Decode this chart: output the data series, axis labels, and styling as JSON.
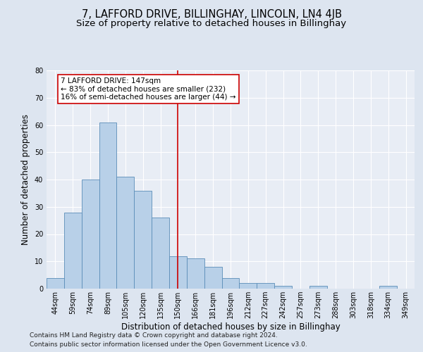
{
  "title": "7, LAFFORD DRIVE, BILLINGHAY, LINCOLN, LN4 4JB",
  "subtitle": "Size of property relative to detached houses in Billinghay",
  "xlabel": "Distribution of detached houses by size in Billinghay",
  "ylabel": "Number of detached properties",
  "categories": [
    "44sqm",
    "59sqm",
    "74sqm",
    "89sqm",
    "105sqm",
    "120sqm",
    "135sqm",
    "150sqm",
    "166sqm",
    "181sqm",
    "196sqm",
    "212sqm",
    "227sqm",
    "242sqm",
    "257sqm",
    "273sqm",
    "288sqm",
    "303sqm",
    "318sqm",
    "334sqm",
    "349sqm"
  ],
  "values": [
    4,
    28,
    40,
    61,
    41,
    36,
    26,
    12,
    11,
    8,
    4,
    2,
    2,
    1,
    0,
    1,
    0,
    0,
    0,
    1,
    0
  ],
  "bar_color": "#b8d0e8",
  "bar_edge_color": "#5b8db8",
  "vline_x": 7,
  "vline_color": "#cc0000",
  "annotation_text": "7 LAFFORD DRIVE: 147sqm\n← 83% of detached houses are smaller (232)\n16% of semi-detached houses are larger (44) →",
  "annotation_box_color": "#ffffff",
  "annotation_box_edge_color": "#cc0000",
  "ylim": [
    0,
    80
  ],
  "yticks": [
    0,
    10,
    20,
    30,
    40,
    50,
    60,
    70,
    80
  ],
  "footer1": "Contains HM Land Registry data © Crown copyright and database right 2024.",
  "footer2": "Contains public sector information licensed under the Open Government Licence v3.0.",
  "bg_color": "#dde5f0",
  "plot_bg_color": "#e8edf5",
  "title_fontsize": 10.5,
  "subtitle_fontsize": 9.5,
  "axis_label_fontsize": 8.5,
  "tick_fontsize": 7,
  "annotation_fontsize": 7.5,
  "footer_fontsize": 6.5
}
